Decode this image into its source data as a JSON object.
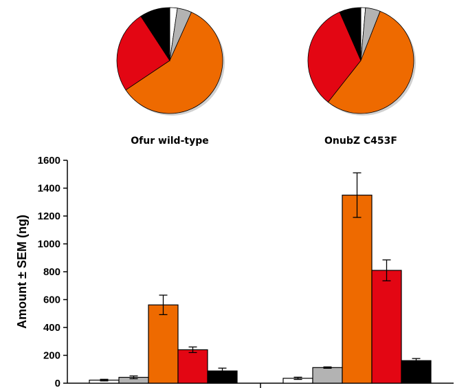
{
  "chart_data": {
    "type": "bar",
    "ylabel": "Amount ± SEM (ng)",
    "ylim": [
      0,
      1600
    ],
    "yticks": [
      0,
      200,
      400,
      600,
      800,
      1000,
      1200,
      1400,
      1600
    ],
    "groups": [
      "Ofur wild-type",
      "OnubZ C453F"
    ],
    "series": [
      {
        "color": "#ffffff",
        "values": [
          22,
          35
        ],
        "errors": [
          6,
          8
        ]
      },
      {
        "color": "#b3b3b3",
        "values": [
          42,
          112
        ],
        "errors": [
          10,
          5
        ]
      },
      {
        "color": "#ee6a00",
        "values": [
          562,
          1350
        ],
        "errors": [
          70,
          160
        ]
      },
      {
        "color": "#e30613",
        "values": [
          240,
          810
        ],
        "errors": [
          20,
          75
        ]
      },
      {
        "color": "#000000",
        "values": [
          88,
          162
        ],
        "errors": [
          20,
          15
        ]
      }
    ],
    "legend": "none",
    "grid": false,
    "pies": [
      {
        "label": "Ofur wild-type"
      },
      {
        "label": "OnubZ C453F"
      }
    ]
  }
}
